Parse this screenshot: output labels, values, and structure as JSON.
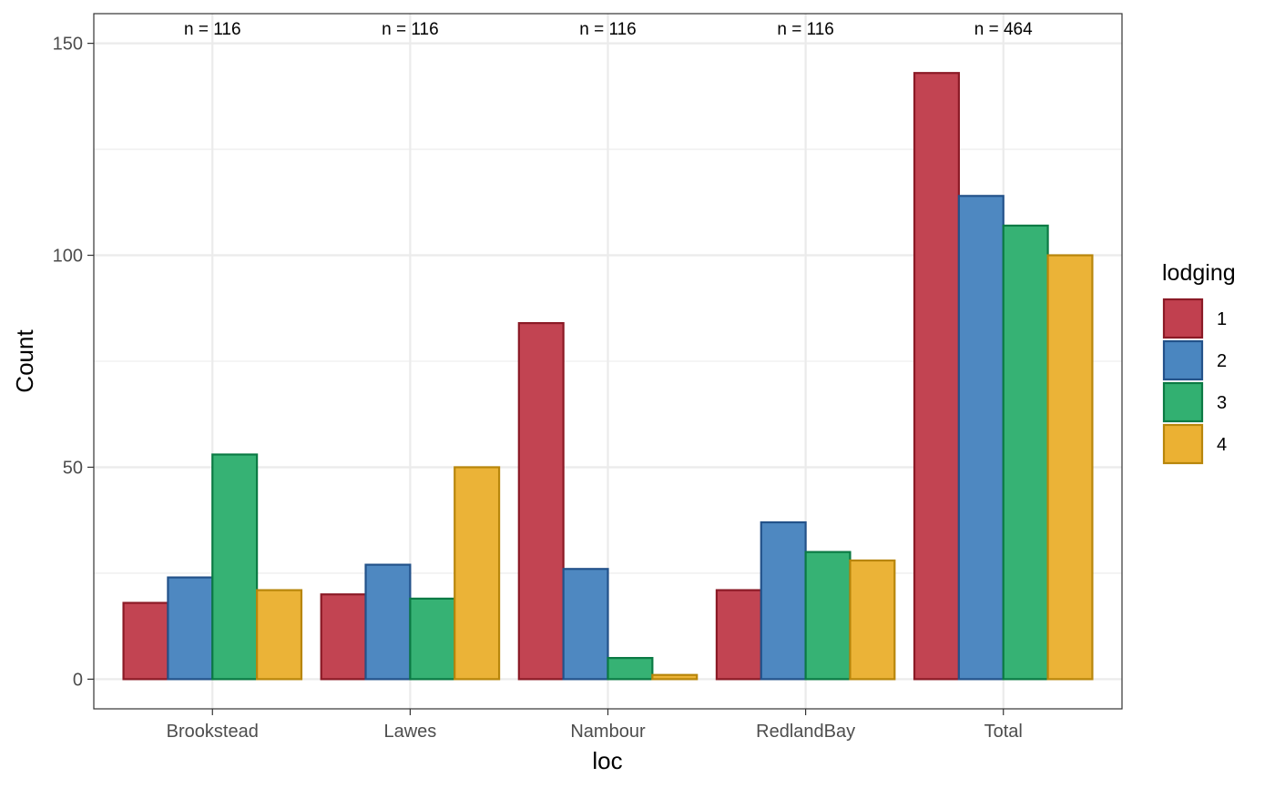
{
  "chart_data": {
    "type": "bar",
    "xlabel": "loc",
    "ylabel": "Count",
    "categories": [
      "Brookstead",
      "Lawes",
      "Nambour",
      "RedlandBay",
      "Total"
    ],
    "n_labels": [
      "n = 116",
      "n = 116",
      "n = 116",
      "n = 116",
      "n = 464"
    ],
    "ylim": [
      -7,
      157
    ],
    "yticks": [
      0,
      50,
      100,
      150
    ],
    "ytick_labels": [
      "0",
      "50",
      "100",
      "150"
    ],
    "grid": true,
    "legend": {
      "title": "lodging",
      "placement": "right",
      "entries": [
        "1",
        "2",
        "3",
        "4"
      ]
    },
    "series": [
      {
        "name": "1",
        "fill": "#C1404F",
        "stroke": "#8B1A26",
        "values": [
          18,
          20,
          84,
          21,
          143
        ]
      },
      {
        "name": "2",
        "fill": "#4A86C0",
        "stroke": "#23528A",
        "values": [
          24,
          27,
          26,
          37,
          114
        ]
      },
      {
        "name": "3",
        "fill": "#32B071",
        "stroke": "#0B7A44",
        "values": [
          53,
          19,
          5,
          30,
          107
        ]
      },
      {
        "name": "4",
        "fill": "#EBB133",
        "stroke": "#B8860B",
        "values": [
          21,
          50,
          1,
          28,
          100
        ]
      }
    ]
  }
}
